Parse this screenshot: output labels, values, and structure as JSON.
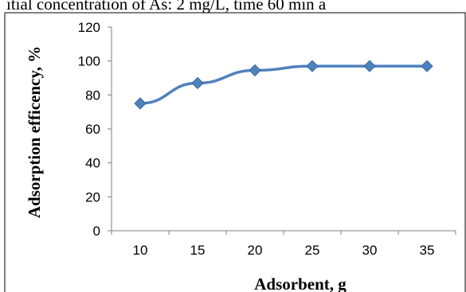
{
  "caption": "itial concentration of As: 2 mg/L, time 60 min a",
  "chart_data": {
    "type": "line",
    "xlabel": "Adsorbent, g",
    "ylabel": "Adsorption efficency, %",
    "categories": [
      "10",
      "15",
      "20",
      "25",
      "30",
      "35"
    ],
    "x": [
      10,
      15,
      20,
      25,
      30,
      35
    ],
    "y_ticks": [
      "0",
      "20",
      "40",
      "60",
      "80",
      "100",
      "120"
    ],
    "ylim": [
      0,
      120
    ],
    "grid": false,
    "marker": "diamond",
    "series": [
      {
        "values": [
          75,
          87,
          94.5,
          97,
          97,
          97
        ]
      }
    ],
    "colors": {
      "series": "#4F81BD",
      "axis": "#000000",
      "frame": "#000000"
    }
  }
}
